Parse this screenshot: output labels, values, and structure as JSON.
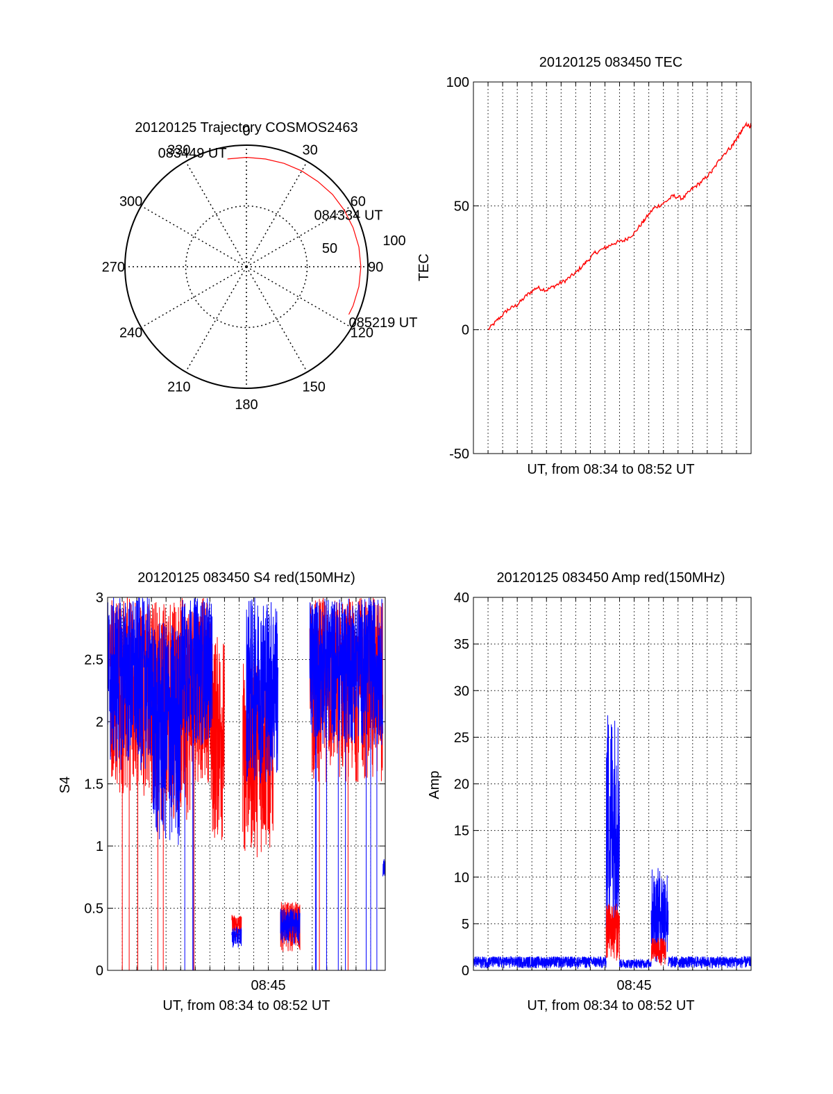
{
  "colors": {
    "red_series": "#ff0000",
    "blue_series": "#0000ff",
    "axis": "#000000",
    "grid": "#000000"
  },
  "chart_data": [
    {
      "id": "trajectory",
      "type": "polar",
      "title": "20120125 Trajectory COSMOS2463",
      "azimuth_labels": [
        "0",
        "30",
        "60",
        "90",
        "120",
        "150",
        "180",
        "210",
        "240",
        "270",
        "300",
        "330"
      ],
      "radial_ticks": [
        {
          "value": 50,
          "label": "50"
        },
        {
          "value": 100,
          "label": "100"
        }
      ],
      "rmax": 100,
      "grid": "dotted",
      "series": [
        {
          "color": "#ff0000",
          "points_az_r": [
            [
              -10,
              90
            ],
            [
              0,
              90
            ],
            [
              10,
              90
            ],
            [
              20,
              90.5
            ],
            [
              30,
              91
            ],
            [
              40,
              91.5
            ],
            [
              50,
              92.5
            ],
            [
              60,
              93
            ],
            [
              70,
              93.5
            ],
            [
              80,
              94
            ],
            [
              90,
              94.2
            ],
            [
              100,
              94
            ],
            [
              110,
              93.5
            ],
            [
              115,
              93
            ]
          ]
        }
      ],
      "annotations": [
        {
          "text": "083449 UT",
          "az": -10,
          "r": 90
        },
        {
          "text": "084334 UT",
          "az": 52,
          "r": 92.5
        },
        {
          "text": "085219 UT",
          "az": 115,
          "r": 93
        }
      ]
    },
    {
      "id": "tec",
      "type": "line",
      "title": "20120125 083450 TEC",
      "xlabel": "UT, from 08:34 to 08:52 UT",
      "ylabel": "TEC",
      "ylim": [
        -50,
        100
      ],
      "yticks": [
        -50,
        0,
        50,
        100
      ],
      "xlim": [
        0,
        1140
      ],
      "x_gridlines": 19,
      "grid": true,
      "series": [
        {
          "color": "#ff0000",
          "x": [
            60,
            100,
            140,
            180,
            220,
            260,
            300,
            340,
            380,
            420,
            460,
            500,
            540,
            580,
            620,
            660,
            700,
            740,
            780,
            820,
            860,
            900,
            940,
            980,
            1020,
            1060,
            1080,
            1100,
            1120,
            1140
          ],
          "y": [
            0,
            4,
            8,
            10,
            14,
            17,
            16,
            18,
            20,
            23,
            27,
            31,
            33,
            35,
            36,
            39,
            44,
            49,
            51,
            54,
            53,
            57,
            60,
            64,
            70,
            74,
            77,
            80,
            83,
            82
          ]
        }
      ]
    },
    {
      "id": "s4",
      "type": "line",
      "title": "20120125 083450 S4 red(150MHz)",
      "xlabel": "UT, from 08:34 to 08:52 UT",
      "ylabel": "S4",
      "ylim": [
        0,
        3
      ],
      "yticks": [
        0,
        0.5,
        1,
        1.5,
        2,
        2.5,
        3
      ],
      "yticklabels": [
        "0",
        "0.5",
        "1",
        "1.5",
        "2",
        "2.5",
        "3"
      ],
      "xlim": [
        0,
        1140
      ],
      "xticks": [
        {
          "value": 660,
          "label": "08:45"
        }
      ],
      "grid": true,
      "series": [
        {
          "name": "",
          "color": "#ff0000",
          "style": "dense-noise",
          "segments": [
            {
              "x0": 10,
              "x1": 180,
              "lo": 1.4,
              "hi": 3.0,
              "spikes_to": 0
            },
            {
              "x0": 180,
              "x1": 345,
              "lo": 1.2,
              "hi": 3.0,
              "spikes_to": 0
            },
            {
              "x0": 345,
              "x1": 425,
              "lo": 1.5,
              "hi": 3.0,
              "spikes_to": 0
            },
            {
              "x0": 425,
              "x1": 480,
              "lo": 1.0,
              "hi": 2.7
            },
            {
              "x0": 510,
              "x1": 550,
              "lo": 0.25,
              "hi": 0.45
            },
            {
              "x0": 555,
              "x1": 680,
              "lo": 0.9,
              "hi": 2.5
            },
            {
              "x0": 710,
              "x1": 790,
              "lo": 0.15,
              "hi": 0.55
            },
            {
              "x0": 830,
              "x1": 1130,
              "lo": 1.5,
              "hi": 3.0,
              "spikes_to": 0
            }
          ]
        },
        {
          "name": "",
          "color": "#0000ff",
          "style": "dense-noise",
          "segments": [
            {
              "x0": 0,
              "x1": 180,
              "lo": 1.6,
              "hi": 3.0
            },
            {
              "x0": 180,
              "x1": 300,
              "lo": 0.95,
              "hi": 2.8
            },
            {
              "x0": 300,
              "x1": 430,
              "lo": 1.8,
              "hi": 3.0,
              "spikes_to": 0
            },
            {
              "x0": 510,
              "x1": 550,
              "lo": 0.18,
              "hi": 0.35
            },
            {
              "x0": 570,
              "x1": 700,
              "lo": 1.5,
              "hi": 3.0
            },
            {
              "x0": 710,
              "x1": 790,
              "lo": 0.2,
              "hi": 0.5
            },
            {
              "x0": 830,
              "x1": 1130,
              "lo": 1.8,
              "hi": 3.0,
              "spikes_to": 0
            },
            {
              "x0": 1130,
              "x1": 1140,
              "lo": 0.75,
              "hi": 0.9
            }
          ]
        }
      ]
    },
    {
      "id": "amp",
      "type": "line",
      "title": "20120125 083450 Amp red(150MHz)",
      "xlabel": "UT, from 08:34 to 08:52 UT",
      "ylabel": "Amp",
      "ylim": [
        0,
        40
      ],
      "yticks": [
        0,
        5,
        10,
        15,
        20,
        25,
        30,
        35,
        40
      ],
      "xlim": [
        0,
        1140
      ],
      "xticks": [
        {
          "value": 660,
          "label": "08:45"
        }
      ],
      "grid": true,
      "series": [
        {
          "name": "",
          "color": "#0000ff",
          "style": "dense-noise",
          "segments": [
            {
              "x0": 0,
              "x1": 545,
              "lo": 0.2,
              "hi": 1.5
            },
            {
              "x0": 545,
              "x1": 600,
              "lo": 3.0,
              "hi": 28.0
            },
            {
              "x0": 600,
              "x1": 730,
              "lo": 0.2,
              "hi": 1.2
            },
            {
              "x0": 730,
              "x1": 800,
              "lo": 0.5,
              "hi": 11.0
            },
            {
              "x0": 800,
              "x1": 1140,
              "lo": 0.2,
              "hi": 1.5
            }
          ]
        },
        {
          "name": "",
          "color": "#ff0000",
          "style": "dense-noise",
          "segments": [
            {
              "x0": 545,
              "x1": 600,
              "lo": 1.0,
              "hi": 7.2
            },
            {
              "x0": 730,
              "x1": 790,
              "lo": 0.5,
              "hi": 3.5
            }
          ]
        }
      ]
    }
  ]
}
